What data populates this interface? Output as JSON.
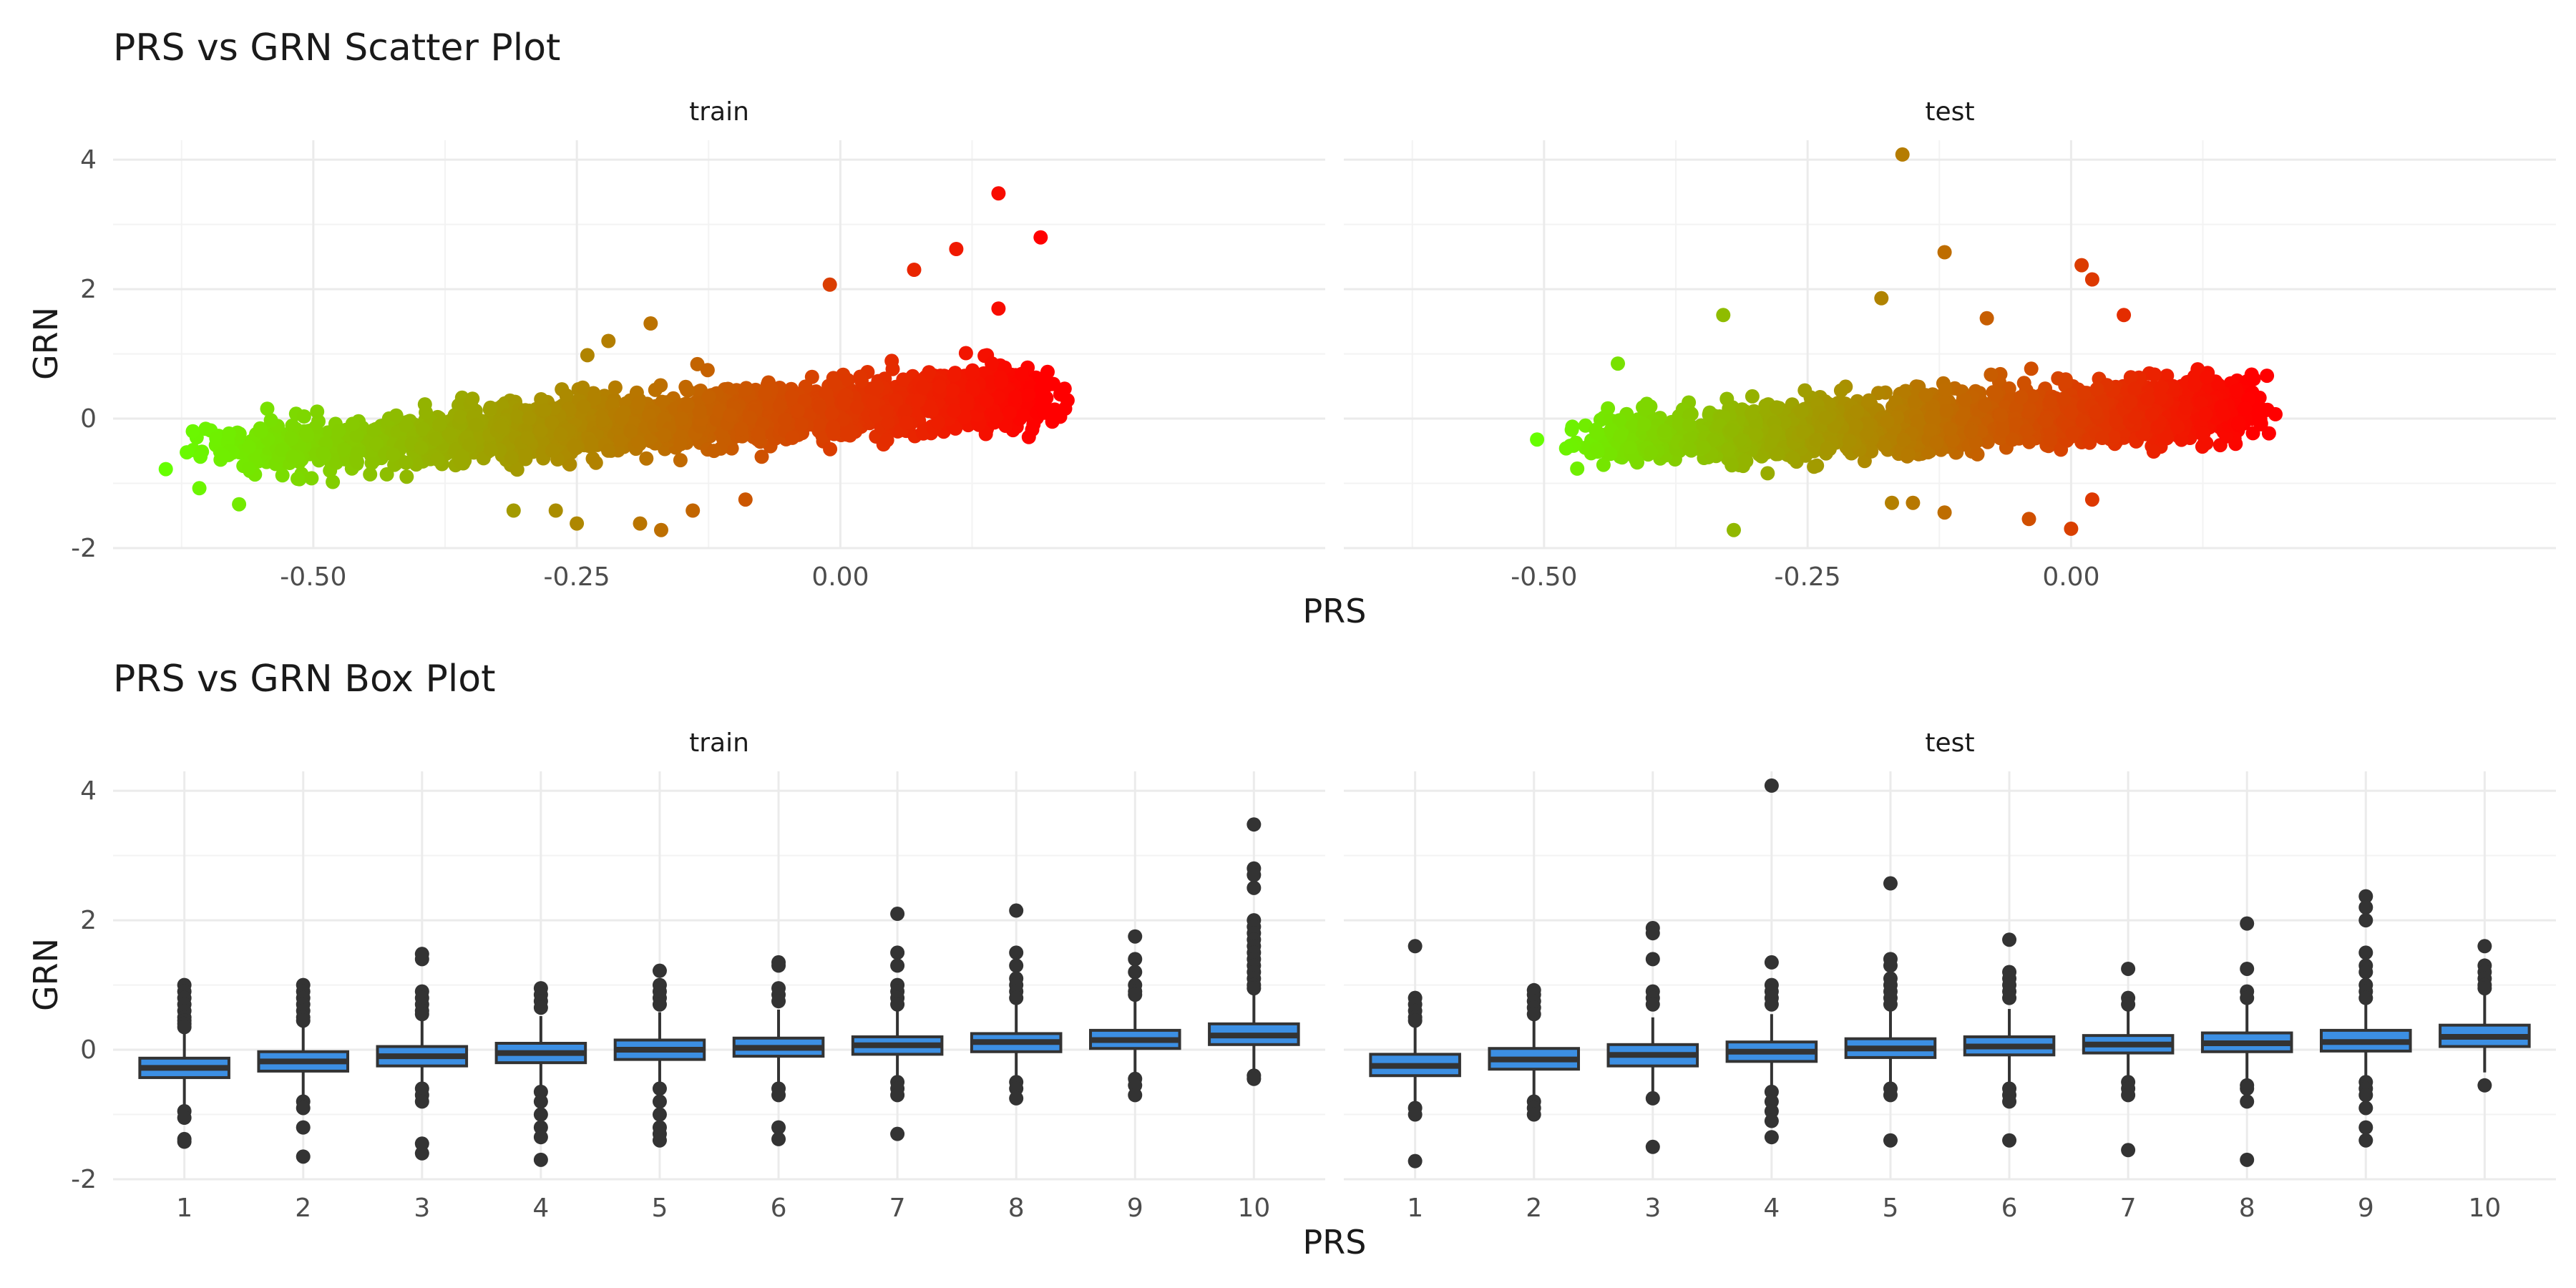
{
  "chart_data": [
    {
      "type": "scatter",
      "title": "PRS vs GRN Scatter Plot",
      "xlabel": "PRS",
      "ylabel": "GRN",
      "facets": [
        "train",
        "test"
      ],
      "xlim": [
        -0.69,
        0.46
      ],
      "ylim": [
        -2.0,
        4.3
      ],
      "xticks": [
        -0.5,
        -0.25,
        0.0
      ],
      "xtick_labels": [
        "-0.50",
        "-0.25",
        "0.00"
      ],
      "yticks": [
        -2,
        0,
        2,
        4
      ],
      "ytick_labels": [
        "-2",
        "0",
        "2",
        "4"
      ],
      "grid": true,
      "color_scale": [
        "#66ff00",
        "#ff0000"
      ],
      "series": [
        {
          "facet": "train",
          "prs_range": [
            -0.64,
            0.19
          ],
          "trend": {
            "slope": 1.15,
            "intercept": 0.16,
            "spread": 0.22
          },
          "outliers": [
            [
              -0.64,
              -0.78
            ],
            [
              -0.62,
              -0.52
            ],
            [
              -0.58,
              -0.23
            ],
            [
              -0.31,
              -1.42
            ],
            [
              -0.27,
              -1.42
            ],
            [
              -0.25,
              -1.62
            ],
            [
              -0.19,
              -1.62
            ],
            [
              -0.17,
              -1.72
            ],
            [
              -0.14,
              -1.42
            ],
            [
              -0.24,
              0.98
            ],
            [
              -0.22,
              1.2
            ],
            [
              -0.18,
              1.47
            ],
            [
              -0.01,
              2.07
            ],
            [
              0.11,
              2.62
            ],
            [
              0.15,
              1.7
            ],
            [
              0.15,
              3.48
            ],
            [
              0.19,
              2.8
            ],
            [
              0.07,
              2.3
            ],
            [
              -0.09,
              -1.25
            ]
          ]
        },
        {
          "facet": "test",
          "prs_range": [
            -0.51,
            0.17
          ],
          "trend": {
            "slope": 0.85,
            "intercept": 0.05,
            "spread": 0.21
          },
          "outliers": [
            [
              -0.33,
              1.6
            ],
            [
              -0.32,
              -1.72
            ],
            [
              -0.16,
              4.08
            ],
            [
              -0.12,
              2.57
            ],
            [
              -0.17,
              -1.3
            ],
            [
              -0.15,
              -1.3
            ],
            [
              -0.12,
              -1.45
            ],
            [
              -0.08,
              1.55
            ],
            [
              -0.04,
              -1.55
            ],
            [
              0.0,
              -1.7
            ],
            [
              0.01,
              2.37
            ],
            [
              0.02,
              2.15
            ],
            [
              0.05,
              1.6
            ],
            [
              -0.18,
              1.86
            ],
            [
              0.02,
              -1.25
            ],
            [
              -0.43,
              0.85
            ]
          ]
        }
      ]
    },
    {
      "type": "box",
      "title": "PRS vs GRN Box Plot",
      "xlabel": "PRS",
      "ylabel": "GRN",
      "facets": [
        "train",
        "test"
      ],
      "categories": [
        "1",
        "2",
        "3",
        "4",
        "5",
        "6",
        "7",
        "8",
        "9",
        "10"
      ],
      "ylim": [
        -2.0,
        4.3
      ],
      "yticks": [
        -2,
        0,
        2,
        4
      ],
      "ytick_labels": [
        "-2",
        "0",
        "2",
        "4"
      ],
      "box_fill": "#3c8fe3",
      "box_edge": "#333333",
      "series": [
        {
          "facet": "train",
          "boxes": [
            {
              "q1": -0.43,
              "median": -0.28,
              "q3": -0.13,
              "lo": -0.88,
              "hi": 0.3,
              "outliers": [
                1.0,
                0.9,
                0.8,
                0.7,
                0.6,
                0.5,
                0.45,
                0.4,
                0.35,
                -0.95,
                -1.05,
                -1.38,
                -1.42
              ]
            },
            {
              "q1": -0.33,
              "median": -0.18,
              "q3": -0.03,
              "lo": -0.78,
              "hi": 0.4,
              "outliers": [
                1.0,
                0.9,
                0.8,
                0.7,
                0.6,
                0.5,
                0.45,
                -0.8,
                -0.9,
                -1.2,
                -1.65
              ]
            },
            {
              "q1": -0.25,
              "median": -0.1,
              "q3": 0.05,
              "lo": -0.68,
              "hi": 0.48,
              "outliers": [
                1.48,
                1.4,
                0.9,
                0.8,
                0.7,
                0.6,
                0.55,
                -0.6,
                -0.7,
                -0.8,
                -1.45,
                -1.6
              ]
            },
            {
              "q1": -0.2,
              "median": -0.05,
              "q3": 0.1,
              "lo": -0.62,
              "hi": 0.52,
              "outliers": [
                0.95,
                0.85,
                0.75,
                0.65,
                -0.65,
                -0.8,
                -1.0,
                -1.2,
                -1.35,
                -1.7
              ]
            },
            {
              "q1": -0.15,
              "median": 0.0,
              "q3": 0.15,
              "lo": -0.6,
              "hi": 0.58,
              "outliers": [
                1.22,
                1.0,
                0.9,
                0.8,
                0.7,
                -0.6,
                -0.8,
                -1.0,
                -1.2,
                -1.3,
                -1.4
              ]
            },
            {
              "q1": -0.1,
              "median": 0.03,
              "q3": 0.18,
              "lo": -0.52,
              "hi": 0.62,
              "outliers": [
                1.35,
                1.3,
                0.95,
                0.85,
                0.75,
                -0.6,
                -0.7,
                -1.2,
                -1.38
              ]
            },
            {
              "q1": -0.07,
              "median": 0.07,
              "q3": 0.2,
              "lo": -0.48,
              "hi": 0.65,
              "outliers": [
                2.1,
                1.5,
                1.3,
                1.0,
                0.9,
                0.8,
                0.7,
                -0.5,
                -0.6,
                -0.7,
                -1.3
              ]
            },
            {
              "q1": -0.03,
              "median": 0.12,
              "q3": 0.25,
              "lo": -0.42,
              "hi": 0.7,
              "outliers": [
                2.15,
                1.5,
                1.3,
                1.1,
                1.0,
                0.9,
                0.8,
                -0.5,
                -0.6,
                -0.75
              ]
            },
            {
              "q1": 0.02,
              "median": 0.15,
              "q3": 0.3,
              "lo": -0.35,
              "hi": 0.75,
              "outliers": [
                1.75,
                1.4,
                1.2,
                1.0,
                0.9,
                0.85,
                -0.45,
                -0.55,
                -0.7
              ]
            },
            {
              "q1": 0.08,
              "median": 0.22,
              "q3": 0.4,
              "lo": -0.35,
              "hi": 0.85,
              "outliers": [
                3.48,
                2.8,
                2.7,
                2.5,
                2.0,
                1.9,
                1.8,
                1.7,
                1.6,
                1.5,
                1.4,
                1.3,
                1.2,
                1.1,
                1.0,
                0.95,
                -0.4,
                -0.45
              ]
            }
          ]
        },
        {
          "facet": "test",
          "boxes": [
            {
              "q1": -0.4,
              "median": -0.25,
              "q3": -0.07,
              "lo": -0.85,
              "hi": 0.35,
              "outliers": [
                1.6,
                0.8,
                0.7,
                0.6,
                0.5,
                0.45,
                -0.9,
                -1.0,
                -1.72
              ]
            },
            {
              "q1": -0.3,
              "median": -0.15,
              "q3": 0.02,
              "lo": -0.75,
              "hi": 0.45,
              "outliers": [
                0.92,
                0.85,
                0.75,
                0.65,
                0.55,
                -0.8,
                -0.9,
                -1.0
              ]
            },
            {
              "q1": -0.25,
              "median": -0.08,
              "q3": 0.08,
              "lo": -0.68,
              "hi": 0.5,
              "outliers": [
                1.88,
                1.8,
                1.4,
                0.9,
                0.8,
                0.7,
                -0.75,
                -1.5
              ]
            },
            {
              "q1": -0.18,
              "median": -0.03,
              "q3": 0.12,
              "lo": -0.6,
              "hi": 0.55,
              "outliers": [
                4.08,
                1.35,
                1.0,
                0.9,
                0.8,
                0.7,
                -0.65,
                -0.8,
                -0.95,
                -1.1,
                -1.35
              ]
            },
            {
              "q1": -0.12,
              "median": 0.02,
              "q3": 0.17,
              "lo": -0.55,
              "hi": 0.6,
              "outliers": [
                2.57,
                1.4,
                1.3,
                1.1,
                1.0,
                0.9,
                0.8,
                0.7,
                -0.6,
                -0.7,
                -1.4
              ]
            },
            {
              "q1": -0.08,
              "median": 0.05,
              "q3": 0.2,
              "lo": -0.5,
              "hi": 0.63,
              "outliers": [
                1.7,
                1.2,
                1.1,
                1.0,
                0.9,
                0.8,
                -0.6,
                -0.7,
                -0.8,
                -1.4
              ]
            },
            {
              "q1": -0.05,
              "median": 0.08,
              "q3": 0.22,
              "lo": -0.45,
              "hi": 0.65,
              "outliers": [
                1.25,
                0.8,
                0.7,
                -0.5,
                -0.6,
                -0.7,
                -1.55
              ]
            },
            {
              "q1": -0.03,
              "median": 0.1,
              "q3": 0.26,
              "lo": -0.45,
              "hi": 0.7,
              "outliers": [
                1.95,
                1.25,
                0.9,
                0.8,
                -0.55,
                -0.6,
                -0.8,
                -1.7
              ]
            },
            {
              "q1": -0.02,
              "median": 0.12,
              "q3": 0.3,
              "lo": -0.45,
              "hi": 0.75,
              "outliers": [
                2.37,
                2.2,
                2.0,
                1.5,
                1.3,
                1.2,
                1.0,
                0.9,
                0.8,
                -0.5,
                -0.6,
                -0.7,
                -0.9,
                -1.2,
                -1.4
              ]
            },
            {
              "q1": 0.05,
              "median": 0.2,
              "q3": 0.38,
              "lo": -0.35,
              "hi": 0.85,
              "outliers": [
                1.6,
                1.3,
                1.2,
                1.1,
                1.0,
                0.95,
                -0.55
              ]
            }
          ]
        }
      ]
    }
  ]
}
